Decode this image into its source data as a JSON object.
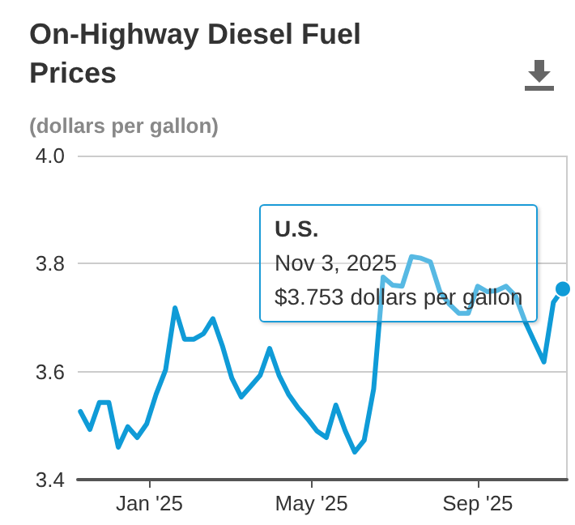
{
  "chart_data": {
    "type": "line",
    "title": "On-Highway Diesel Fuel Prices",
    "subtitle": "(dollars per gallon)",
    "x": [
      "2024-11-11",
      "2024-11-18",
      "2024-11-25",
      "2024-12-02",
      "2024-12-09",
      "2024-12-16",
      "2024-12-23",
      "2024-12-30",
      "2025-01-06",
      "2025-01-13",
      "2025-01-20",
      "2025-01-27",
      "2025-02-03",
      "2025-02-10",
      "2025-02-17",
      "2025-02-24",
      "2025-03-03",
      "2025-03-10",
      "2025-03-17",
      "2025-03-24",
      "2025-03-31",
      "2025-04-07",
      "2025-04-14",
      "2025-04-21",
      "2025-04-28",
      "2025-05-05",
      "2025-05-12",
      "2025-05-19",
      "2025-05-26",
      "2025-06-02",
      "2025-06-09",
      "2025-06-16",
      "2025-06-23",
      "2025-06-30",
      "2025-07-07",
      "2025-07-14",
      "2025-07-21",
      "2025-07-28",
      "2025-08-04",
      "2025-08-11",
      "2025-08-18",
      "2025-08-25",
      "2025-09-01",
      "2025-09-08",
      "2025-09-15",
      "2025-09-22",
      "2025-09-29",
      "2025-10-06",
      "2025-10-13",
      "2025-10-20",
      "2025-10-27",
      "2025-11-03"
    ],
    "series": [
      {
        "name": "U.S.",
        "color": "#0f9bd7",
        "values": [
          3.526,
          3.493,
          3.543,
          3.543,
          3.46,
          3.498,
          3.478,
          3.503,
          3.558,
          3.603,
          3.718,
          3.66,
          3.66,
          3.67,
          3.698,
          3.648,
          3.588,
          3.553,
          3.573,
          3.593,
          3.643,
          3.593,
          3.558,
          3.533,
          3.513,
          3.49,
          3.478,
          3.538,
          3.49,
          3.451,
          3.473,
          3.568,
          3.775,
          3.76,
          3.758,
          3.813,
          3.81,
          3.803,
          3.748,
          3.725,
          3.708,
          3.708,
          3.758,
          3.748,
          3.75,
          3.758,
          3.74,
          3.693,
          3.655,
          3.618,
          3.728,
          3.753
        ]
      }
    ],
    "ylim": [
      3.4,
      4.0
    ],
    "yticks": [
      3.4,
      3.6,
      3.8,
      {
        "value": 4.0,
        "label": "4.0"
      }
    ],
    "xlim": [
      "2024-11-09",
      "2025-11-06"
    ],
    "xticks": [
      {
        "value": "2025-01-01",
        "label": "Jan '25"
      },
      {
        "value": "2025-05-01",
        "label": "May '25"
      },
      {
        "value": "2025-09-01",
        "label": "Sep '25"
      }
    ],
    "grid": "y",
    "legend": false,
    "marker": "none",
    "line_style": "solid",
    "annotations": [
      "Nov 3, 2025",
      "$3.753 dollars per gallon"
    ]
  }
}
